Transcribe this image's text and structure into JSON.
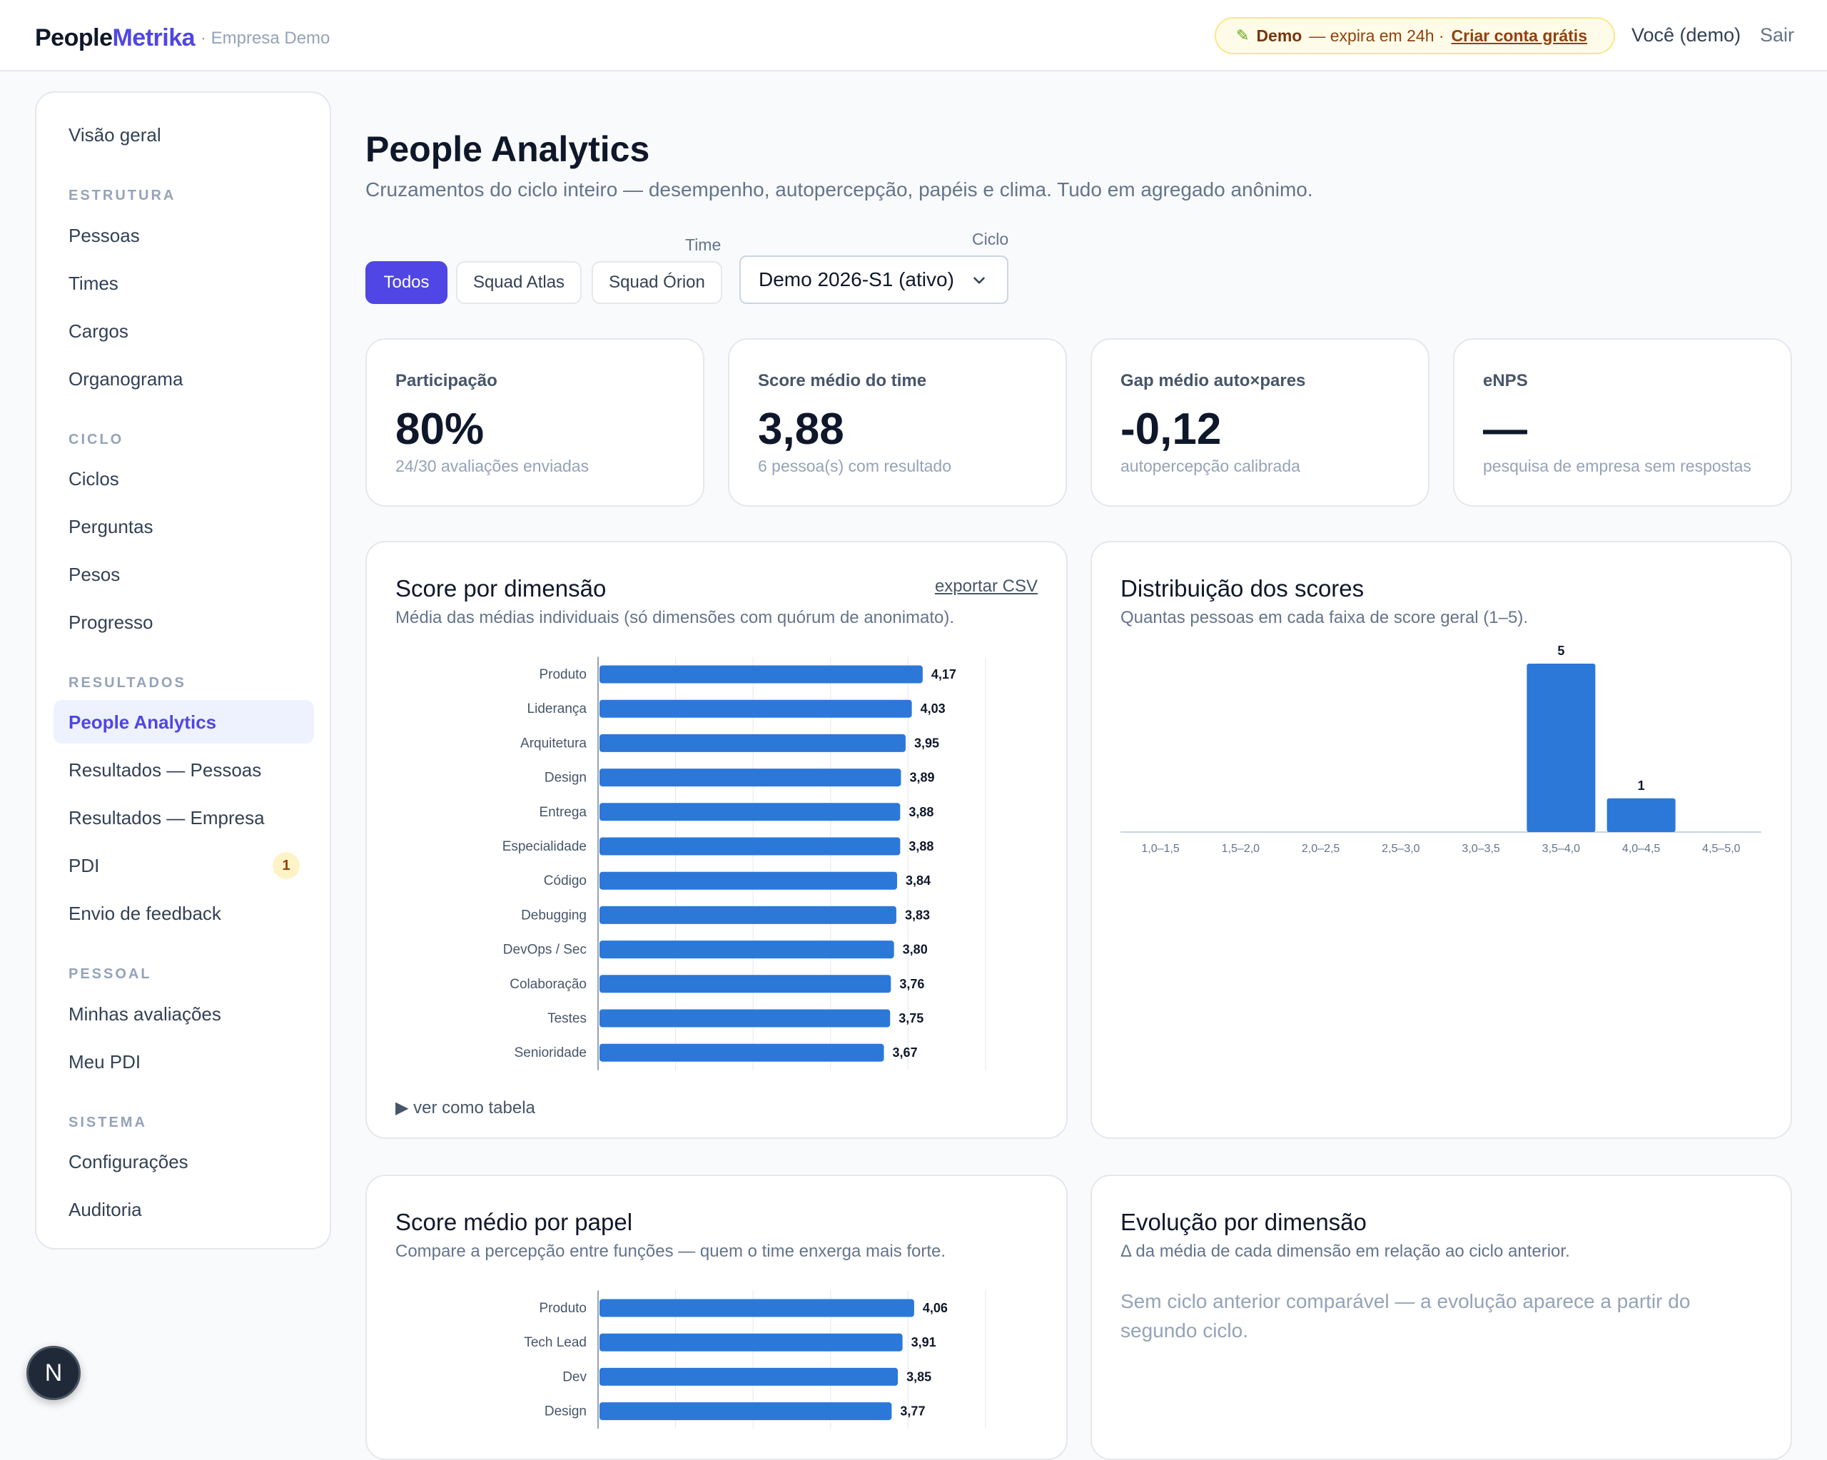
{
  "header": {
    "logo_part1": "People",
    "logo_part2": "Metrika",
    "company": "· Empresa Demo",
    "demo_label": "Demo",
    "demo_text": "— expira em 24h ·",
    "demo_link": "Criar conta grátis",
    "user": "Você (demo)",
    "logout": "Sair"
  },
  "sidebar": {
    "overview": "Visão geral",
    "sections": {
      "estrutura": "ESTRUTURA",
      "ciclo": "CICLO",
      "resultados": "RESULTADOS",
      "pessoal": "PESSOAL",
      "sistema": "SISTEMA"
    },
    "estrutura": [
      "Pessoas",
      "Times",
      "Cargos",
      "Organograma"
    ],
    "ciclo": [
      "Ciclos",
      "Perguntas",
      "Pesos",
      "Progresso"
    ],
    "resultados": [
      "People Analytics",
      "Resultados — Pessoas",
      "Resultados — Empresa",
      "PDI",
      "Envio de feedback"
    ],
    "pdi_badge": "1",
    "pessoal": [
      "Minhas avaliações",
      "Meu PDI"
    ],
    "sistema": [
      "Configurações",
      "Auditoria"
    ]
  },
  "page": {
    "title": "People Analytics",
    "subtitle": "Cruzamentos do ciclo inteiro — desempenho, autopercepção, papéis e clima. Tudo em agregado anônimo."
  },
  "filters": {
    "time_label": "Time",
    "ciclo_label": "Ciclo",
    "teams": [
      "Todos",
      "Squad Atlas",
      "Squad Órion"
    ],
    "selected_team": "Todos",
    "cycle_value": "Demo 2026-S1 (ativo)"
  },
  "kpis": [
    {
      "label": "Participação",
      "value": "80%",
      "sub": "24/30 avaliações enviadas"
    },
    {
      "label": "Score médio do time",
      "value": "3,88",
      "sub": "6 pessoa(s) com resultado"
    },
    {
      "label": "Gap médio auto×pares",
      "value": "-0,12",
      "sub": "autopercepção calibrada"
    },
    {
      "label": "eNPS",
      "value": "—",
      "sub": "pesquisa de empresa sem respostas"
    }
  ],
  "cards": {
    "dimension": {
      "title": "Score por dimensão",
      "subtitle": "Média das médias individuais (só dimensões com quórum de anonimato).",
      "export": "exportar CSV",
      "toggle": "▶ ver como tabela"
    },
    "distribution": {
      "title": "Distribuição dos scores",
      "subtitle": "Quantas pessoas em cada faixa de score geral (1–5)."
    },
    "role": {
      "title": "Score médio por papel",
      "subtitle": "Compare a percepção entre funções — quem o time enxerga mais forte."
    },
    "evolution": {
      "title": "Evolução por dimensão",
      "subtitle": "Δ da média de cada dimensão em relação ao ciclo anterior.",
      "empty": "Sem ciclo anterior comparável — a evolução aparece a partir do segundo ciclo."
    }
  },
  "chart_data": [
    {
      "type": "bar",
      "orientation": "horizontal",
      "title": "Score por dimensão",
      "categories": [
        "Produto",
        "Liderança",
        "Arquitetura",
        "Design",
        "Entrega",
        "Especialidade",
        "Código",
        "Debugging",
        "DevOps / Sec",
        "Colaboração",
        "Testes",
        "Senioridade"
      ],
      "values": [
        4.17,
        4.03,
        3.95,
        3.89,
        3.88,
        3.88,
        3.84,
        3.83,
        3.8,
        3.76,
        3.75,
        3.67
      ],
      "value_labels": [
        "4,17",
        "4,03",
        "3,95",
        "3,89",
        "3,88",
        "3,88",
        "3,84",
        "3,83",
        "3,80",
        "3,76",
        "3,75",
        "3,67"
      ],
      "xlim": [
        0,
        5
      ],
      "color": "#2b78d9",
      "grid": true
    },
    {
      "type": "bar",
      "title": "Distribuição dos scores",
      "categories": [
        "1,0–1,5",
        "1,5–2,0",
        "2,0–2,5",
        "2,5–3,0",
        "3,0–3,5",
        "3,5–4,0",
        "4,0–4,5",
        "4,5–5,0"
      ],
      "values": [
        0,
        0,
        0,
        0,
        0,
        5,
        1,
        0
      ],
      "color": "#2b78d9"
    },
    {
      "type": "bar",
      "orientation": "horizontal",
      "title": "Score médio por papel",
      "categories": [
        "Produto",
        "Tech Lead",
        "Dev",
        "Design"
      ],
      "values": [
        4.06,
        3.91,
        3.85,
        3.77
      ],
      "value_labels": [
        "4,06",
        "3,91",
        "3,85",
        "3,77"
      ],
      "xlim": [
        0,
        5
      ],
      "color": "#2b78d9",
      "grid": true
    }
  ]
}
